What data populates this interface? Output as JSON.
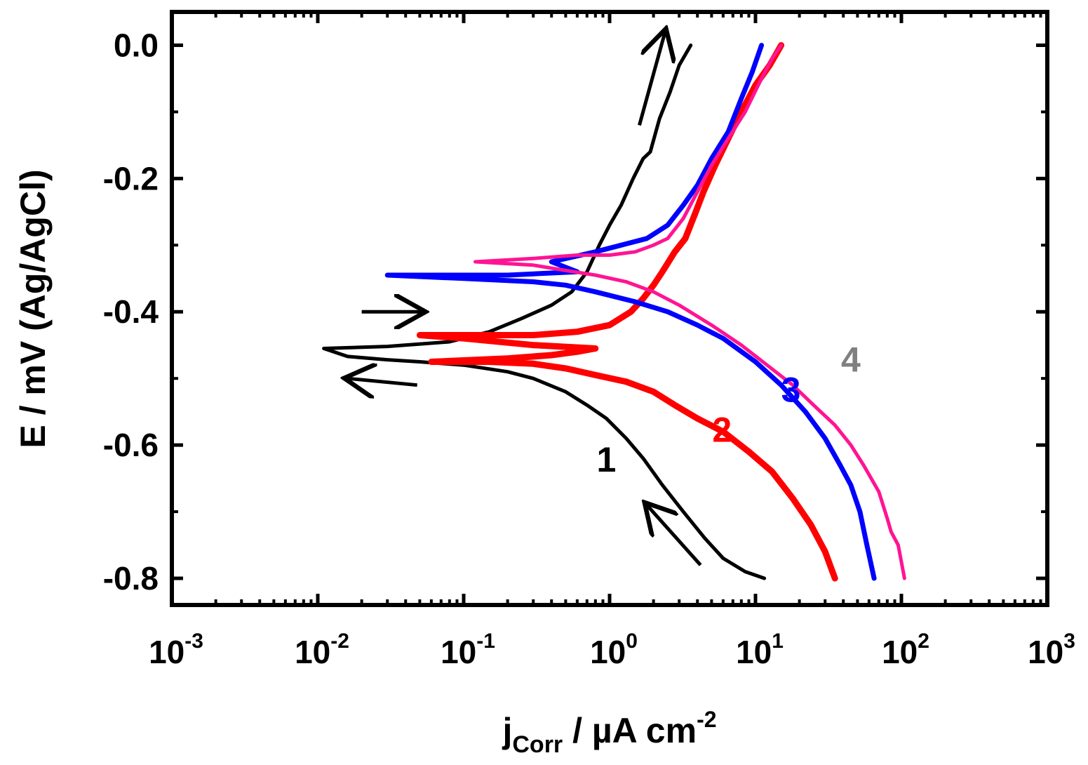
{
  "chart_data": {
    "type": "line",
    "title": "",
    "xlabel": {
      "main": "j",
      "sub": "Corr",
      "rest": " / µA cm",
      "sup": "-2"
    },
    "ylabel": "E / mV (Ag/AgCl)",
    "x_scale": "log",
    "xlim_exp": [
      -3,
      3
    ],
    "ylim": [
      -0.84,
      0.05
    ],
    "x_ticks": [
      {
        "base": "10",
        "exp": "-3",
        "value": 0.001
      },
      {
        "base": "10",
        "exp": "-2",
        "value": 0.01
      },
      {
        "base": "10",
        "exp": "-1",
        "value": 0.1
      },
      {
        "base": "10",
        "exp": "0",
        "value": 1
      },
      {
        "base": "10",
        "exp": "1",
        "value": 10
      },
      {
        "base": "10",
        "exp": "2",
        "value": 100
      },
      {
        "base": "10",
        "exp": "3",
        "value": 1000
      }
    ],
    "y_ticks": [
      {
        "label": "0.0",
        "value": 0.0
      },
      {
        "label": "-0.2",
        "value": -0.2
      },
      {
        "label": "-0.4",
        "value": -0.4
      },
      {
        "label": "-0.6",
        "value": -0.6
      },
      {
        "label": "-0.8",
        "value": -0.8
      }
    ],
    "series": [
      {
        "name": "1",
        "color": "#000000",
        "width": 5,
        "points": [
          [
            11.5,
            -0.8
          ],
          [
            8.5,
            -0.79
          ],
          [
            6.0,
            -0.77
          ],
          [
            4.5,
            -0.74
          ],
          [
            3.2,
            -0.7
          ],
          [
            2.3,
            -0.66
          ],
          [
            1.7,
            -0.62
          ],
          [
            1.3,
            -0.59
          ],
          [
            0.95,
            -0.56
          ],
          [
            0.7,
            -0.54
          ],
          [
            0.5,
            -0.52
          ],
          [
            0.3,
            -0.5
          ],
          [
            0.2,
            -0.49
          ],
          [
            0.1,
            -0.48
          ],
          [
            0.05,
            -0.475
          ],
          [
            0.03,
            -0.472
          ],
          [
            0.016,
            -0.467
          ],
          [
            0.011,
            -0.455
          ],
          [
            0.03,
            -0.452
          ],
          [
            0.08,
            -0.445
          ],
          [
            0.15,
            -0.43
          ],
          [
            0.25,
            -0.41
          ],
          [
            0.4,
            -0.39
          ],
          [
            0.55,
            -0.37
          ],
          [
            0.7,
            -0.34
          ],
          [
            0.85,
            -0.3
          ],
          [
            1.0,
            -0.27
          ],
          [
            1.2,
            -0.24
          ],
          [
            1.45,
            -0.2
          ],
          [
            1.7,
            -0.17
          ],
          [
            1.9,
            -0.16
          ],
          [
            2.2,
            -0.11
          ],
          [
            2.6,
            -0.07
          ],
          [
            3.0,
            -0.03
          ],
          [
            3.6,
            0.0
          ]
        ]
      },
      {
        "name": "2",
        "color": "#ff0000",
        "width": 9,
        "points": [
          [
            35,
            -0.8
          ],
          [
            30,
            -0.76
          ],
          [
            24,
            -0.72
          ],
          [
            18,
            -0.68
          ],
          [
            13,
            -0.64
          ],
          [
            9,
            -0.61
          ],
          [
            6,
            -0.58
          ],
          [
            4,
            -0.56
          ],
          [
            2.8,
            -0.54
          ],
          [
            2.0,
            -0.52
          ],
          [
            1.3,
            -0.505
          ],
          [
            0.8,
            -0.495
          ],
          [
            0.5,
            -0.485
          ],
          [
            0.3,
            -0.478
          ],
          [
            0.15,
            -0.475
          ],
          [
            0.06,
            -0.475
          ],
          [
            0.2,
            -0.47
          ],
          [
            0.4,
            -0.465
          ],
          [
            0.6,
            -0.46
          ],
          [
            0.8,
            -0.455
          ],
          [
            0.3,
            -0.45
          ],
          [
            0.1,
            -0.44
          ],
          [
            0.05,
            -0.435
          ],
          [
            0.3,
            -0.435
          ],
          [
            0.6,
            -0.43
          ],
          [
            1.0,
            -0.42
          ],
          [
            1.4,
            -0.4
          ],
          [
            1.7,
            -0.38
          ],
          [
            2.0,
            -0.36
          ],
          [
            2.3,
            -0.34
          ],
          [
            2.8,
            -0.31
          ],
          [
            3.3,
            -0.29
          ],
          [
            3.9,
            -0.25
          ],
          [
            4.4,
            -0.22
          ],
          [
            5.3,
            -0.18
          ],
          [
            6.5,
            -0.14
          ],
          [
            8.0,
            -0.1
          ],
          [
            10,
            -0.06
          ],
          [
            12.5,
            -0.03
          ],
          [
            15,
            0.0
          ]
        ]
      },
      {
        "name": "3",
        "color": "#0000ff",
        "width": 7,
        "points": [
          [
            65,
            -0.8
          ],
          [
            58,
            -0.75
          ],
          [
            52,
            -0.7
          ],
          [
            45,
            -0.66
          ],
          [
            38,
            -0.63
          ],
          [
            30,
            -0.59
          ],
          [
            22,
            -0.55
          ],
          [
            15,
            -0.51
          ],
          [
            10,
            -0.475
          ],
          [
            6,
            -0.44
          ],
          [
            4,
            -0.42
          ],
          [
            2.5,
            -0.4
          ],
          [
            1.5,
            -0.385
          ],
          [
            0.8,
            -0.37
          ],
          [
            0.5,
            -0.36
          ],
          [
            0.3,
            -0.355
          ],
          [
            0.1,
            -0.35
          ],
          [
            0.03,
            -0.345
          ],
          [
            0.2,
            -0.345
          ],
          [
            0.6,
            -0.34
          ],
          [
            0.4,
            -0.325
          ],
          [
            0.8,
            -0.31
          ],
          [
            1.2,
            -0.3
          ],
          [
            1.8,
            -0.29
          ],
          [
            2.5,
            -0.27
          ],
          [
            3.2,
            -0.24
          ],
          [
            4.0,
            -0.21
          ],
          [
            5.0,
            -0.17
          ],
          [
            6.5,
            -0.13
          ],
          [
            8.0,
            -0.08
          ],
          [
            9.5,
            -0.04
          ],
          [
            11,
            0.0
          ]
        ]
      },
      {
        "name": "4",
        "color": "#ff1493",
        "width": 5,
        "points": [
          [
            105,
            -0.8
          ],
          [
            95,
            -0.75
          ],
          [
            85,
            -0.73
          ],
          [
            80,
            -0.71
          ],
          [
            70,
            -0.67
          ],
          [
            55,
            -0.63
          ],
          [
            45,
            -0.6
          ],
          [
            35,
            -0.57
          ],
          [
            25,
            -0.54
          ],
          [
            18,
            -0.51
          ],
          [
            12,
            -0.48
          ],
          [
            8,
            -0.45
          ],
          [
            5,
            -0.42
          ],
          [
            3,
            -0.39
          ],
          [
            2,
            -0.37
          ],
          [
            1.3,
            -0.355
          ],
          [
            0.8,
            -0.345
          ],
          [
            0.5,
            -0.338
          ],
          [
            0.3,
            -0.33
          ],
          [
            0.12,
            -0.325
          ],
          [
            0.3,
            -0.32
          ],
          [
            0.6,
            -0.315
          ],
          [
            1.0,
            -0.315
          ],
          [
            1.5,
            -0.31
          ],
          [
            2.0,
            -0.3
          ],
          [
            2.5,
            -0.29
          ],
          [
            3.2,
            -0.26
          ],
          [
            4.0,
            -0.22
          ],
          [
            5.0,
            -0.18
          ],
          [
            6.5,
            -0.14
          ],
          [
            8.5,
            -0.1
          ],
          [
            11,
            -0.05
          ],
          [
            13,
            -0.02
          ],
          [
            15,
            0.0
          ]
        ]
      }
    ],
    "annotations": [
      {
        "text": "1",
        "color": "#000000",
        "x": 0.95,
        "y": -0.64
      },
      {
        "text": "2",
        "color": "#ff0000",
        "x": 5.9,
        "y": -0.595
      },
      {
        "text": "3",
        "color": "#0000ff",
        "x": 17.5,
        "y": -0.535
      },
      {
        "text": "4",
        "color": "#808080",
        "x": 45,
        "y": -0.49
      }
    ],
    "arrows": [
      {
        "from": [
          0.048,
          -0.51
        ],
        "to": [
          0.016,
          -0.5
        ]
      },
      {
        "from": [
          0.02,
          -0.4
        ],
        "to": [
          0.052,
          -0.4
        ]
      },
      {
        "from": [
          4.2,
          -0.78
        ],
        "to": [
          1.8,
          -0.69
        ]
      },
      {
        "from": [
          1.6,
          -0.12
        ],
        "to": [
          2.4,
          0.02
        ]
      }
    ],
    "grid": false,
    "legend": "none"
  }
}
